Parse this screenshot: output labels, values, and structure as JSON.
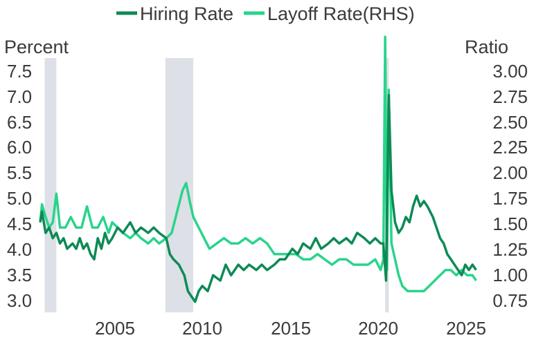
{
  "colors": {
    "hiring": "#0e8a55",
    "layoff": "#29d48b",
    "recession": "#dde0e6",
    "text": "#3a3a3a"
  },
  "chart_data": {
    "type": "line",
    "title": "",
    "x_ticks": [
      "2005",
      "2010",
      "2015",
      "2020",
      "2025"
    ],
    "x_range": [
      2001.0,
      2025.3
    ],
    "left_axis": {
      "label": "Percent",
      "ticks": [
        "7.5",
        "7.0",
        "6.5",
        "6.0",
        "5.5",
        "5.0",
        "4.5",
        "4.0",
        "3.5",
        "3.0"
      ],
      "ylim": [
        2.9,
        7.7
      ]
    },
    "right_axis": {
      "label": "Ratio",
      "ticks": [
        "3.00",
        "2.75",
        "2.50",
        "2.25",
        "2.00",
        "1.75",
        "1.50",
        "1.25",
        "1.00",
        "0.75"
      ],
      "ylim": [
        0.7,
        3.1
      ]
    },
    "legend": {
      "position": "top-center",
      "entries": [
        "Hiring Rate",
        "Layoff Rate(RHS)"
      ]
    },
    "recession_shading": [
      [
        2001.25,
        2001.9
      ],
      [
        2007.95,
        2009.5
      ],
      [
        2020.15,
        2020.35
      ]
    ],
    "series": [
      {
        "name": "Hiring Rate",
        "axis": "left",
        "color_key": "hiring",
        "points": [
          [
            2001.0,
            4.6
          ],
          [
            2001.1,
            4.8
          ],
          [
            2001.3,
            4.4
          ],
          [
            2001.5,
            4.5
          ],
          [
            2001.7,
            4.3
          ],
          [
            2001.9,
            4.4
          ],
          [
            2002.1,
            4.2
          ],
          [
            2002.3,
            4.3
          ],
          [
            2002.5,
            4.1
          ],
          [
            2002.8,
            4.2
          ],
          [
            2003.0,
            4.1
          ],
          [
            2003.2,
            4.3
          ],
          [
            2003.4,
            4.1
          ],
          [
            2003.6,
            4.2
          ],
          [
            2003.8,
            4.0
          ],
          [
            2004.0,
            3.9
          ],
          [
            2004.2,
            4.3
          ],
          [
            2004.4,
            4.1
          ],
          [
            2004.6,
            4.4
          ],
          [
            2004.8,
            4.2
          ],
          [
            2005.0,
            4.3
          ],
          [
            2005.3,
            4.5
          ],
          [
            2005.6,
            4.4
          ],
          [
            2006.0,
            4.6
          ],
          [
            2006.3,
            4.4
          ],
          [
            2006.6,
            4.5
          ],
          [
            2007.0,
            4.4
          ],
          [
            2007.3,
            4.5
          ],
          [
            2007.6,
            4.4
          ],
          [
            2008.0,
            4.3
          ],
          [
            2008.2,
            4.0
          ],
          [
            2008.4,
            3.9
          ],
          [
            2008.7,
            3.8
          ],
          [
            2009.0,
            3.6
          ],
          [
            2009.2,
            3.3
          ],
          [
            2009.4,
            3.2
          ],
          [
            2009.6,
            3.1
          ],
          [
            2009.8,
            3.3
          ],
          [
            2010.0,
            3.4
          ],
          [
            2010.3,
            3.3
          ],
          [
            2010.6,
            3.6
          ],
          [
            2011.0,
            3.5
          ],
          [
            2011.3,
            3.8
          ],
          [
            2011.6,
            3.6
          ],
          [
            2012.0,
            3.8
          ],
          [
            2012.3,
            3.7
          ],
          [
            2012.6,
            3.8
          ],
          [
            2013.0,
            3.7
          ],
          [
            2013.3,
            3.8
          ],
          [
            2013.6,
            3.7
          ],
          [
            2014.0,
            3.8
          ],
          [
            2014.3,
            3.9
          ],
          [
            2014.6,
            3.9
          ],
          [
            2015.0,
            4.1
          ],
          [
            2015.3,
            4.0
          ],
          [
            2015.6,
            4.2
          ],
          [
            2016.0,
            4.1
          ],
          [
            2016.3,
            4.3
          ],
          [
            2016.6,
            4.1
          ],
          [
            2017.0,
            4.2
          ],
          [
            2017.3,
            4.3
          ],
          [
            2017.6,
            4.2
          ],
          [
            2018.0,
            4.3
          ],
          [
            2018.3,
            4.2
          ],
          [
            2018.6,
            4.4
          ],
          [
            2019.0,
            4.3
          ],
          [
            2019.3,
            4.2
          ],
          [
            2019.6,
            4.3
          ],
          [
            2019.9,
            4.2
          ],
          [
            2020.05,
            4.2
          ],
          [
            2020.2,
            3.5
          ],
          [
            2020.35,
            7.0
          ],
          [
            2020.5,
            5.2
          ],
          [
            2020.7,
            4.6
          ],
          [
            2020.9,
            4.4
          ],
          [
            2021.1,
            4.5
          ],
          [
            2021.3,
            4.7
          ],
          [
            2021.5,
            4.6
          ],
          [
            2021.7,
            4.9
          ],
          [
            2021.9,
            5.1
          ],
          [
            2022.1,
            4.9
          ],
          [
            2022.3,
            5.0
          ],
          [
            2022.5,
            4.9
          ],
          [
            2022.8,
            4.7
          ],
          [
            2023.0,
            4.5
          ],
          [
            2023.2,
            4.3
          ],
          [
            2023.4,
            4.2
          ],
          [
            2023.6,
            4.0
          ],
          [
            2023.8,
            3.9
          ],
          [
            2024.0,
            3.8
          ],
          [
            2024.2,
            3.7
          ],
          [
            2024.4,
            3.6
          ],
          [
            2024.6,
            3.8
          ],
          [
            2024.8,
            3.7
          ],
          [
            2025.0,
            3.8
          ],
          [
            2025.2,
            3.7
          ]
        ]
      },
      {
        "name": "Layoff Rate(RHS)",
        "axis": "right",
        "color_key": "layoff",
        "points": [
          [
            2001.0,
            1.55
          ],
          [
            2001.1,
            1.72
          ],
          [
            2001.3,
            1.6
          ],
          [
            2001.5,
            1.5
          ],
          [
            2001.7,
            1.55
          ],
          [
            2001.9,
            1.82
          ],
          [
            2002.1,
            1.5
          ],
          [
            2002.4,
            1.5
          ],
          [
            2002.7,
            1.6
          ],
          [
            2003.0,
            1.5
          ],
          [
            2003.3,
            1.5
          ],
          [
            2003.6,
            1.7
          ],
          [
            2003.9,
            1.5
          ],
          [
            2004.2,
            1.5
          ],
          [
            2004.5,
            1.6
          ],
          [
            2004.8,
            1.45
          ],
          [
            2005.0,
            1.55
          ],
          [
            2005.3,
            1.5
          ],
          [
            2005.6,
            1.45
          ],
          [
            2006.0,
            1.4
          ],
          [
            2006.3,
            1.45
          ],
          [
            2006.6,
            1.4
          ],
          [
            2007.0,
            1.35
          ],
          [
            2007.3,
            1.4
          ],
          [
            2007.6,
            1.35
          ],
          [
            2008.0,
            1.4
          ],
          [
            2008.3,
            1.45
          ],
          [
            2008.6,
            1.65
          ],
          [
            2008.9,
            1.85
          ],
          [
            2009.1,
            1.92
          ],
          [
            2009.3,
            1.75
          ],
          [
            2009.5,
            1.6
          ],
          [
            2009.8,
            1.5
          ],
          [
            2010.1,
            1.4
          ],
          [
            2010.4,
            1.3
          ],
          [
            2010.8,
            1.35
          ],
          [
            2011.2,
            1.4
          ],
          [
            2011.6,
            1.35
          ],
          [
            2012.0,
            1.35
          ],
          [
            2012.4,
            1.4
          ],
          [
            2012.8,
            1.35
          ],
          [
            2013.2,
            1.4
          ],
          [
            2013.6,
            1.35
          ],
          [
            2014.0,
            1.25
          ],
          [
            2014.4,
            1.25
          ],
          [
            2014.8,
            1.25
          ],
          [
            2015.2,
            1.25
          ],
          [
            2015.6,
            1.2
          ],
          [
            2016.0,
            1.2
          ],
          [
            2016.4,
            1.25
          ],
          [
            2016.8,
            1.2
          ],
          [
            2017.2,
            1.15
          ],
          [
            2017.6,
            1.2
          ],
          [
            2018.0,
            1.2
          ],
          [
            2018.4,
            1.15
          ],
          [
            2018.8,
            1.15
          ],
          [
            2019.2,
            1.15
          ],
          [
            2019.6,
            1.2
          ],
          [
            2019.9,
            1.1
          ],
          [
            2020.05,
            1.2
          ],
          [
            2020.15,
            3.3
          ],
          [
            2020.25,
            1.1
          ],
          [
            2020.35,
            2.8
          ],
          [
            2020.5,
            1.35
          ],
          [
            2020.7,
            1.2
          ],
          [
            2020.9,
            1.05
          ],
          [
            2021.1,
            0.95
          ],
          [
            2021.4,
            0.9
          ],
          [
            2021.7,
            0.9
          ],
          [
            2022.0,
            0.9
          ],
          [
            2022.3,
            0.9
          ],
          [
            2022.6,
            0.95
          ],
          [
            2022.9,
            1.0
          ],
          [
            2023.2,
            1.05
          ],
          [
            2023.5,
            1.1
          ],
          [
            2023.8,
            1.1
          ],
          [
            2024.1,
            1.05
          ],
          [
            2024.4,
            1.1
          ],
          [
            2024.7,
            1.05
          ],
          [
            2025.0,
            1.05
          ],
          [
            2025.2,
            1.0
          ]
        ]
      }
    ]
  }
}
